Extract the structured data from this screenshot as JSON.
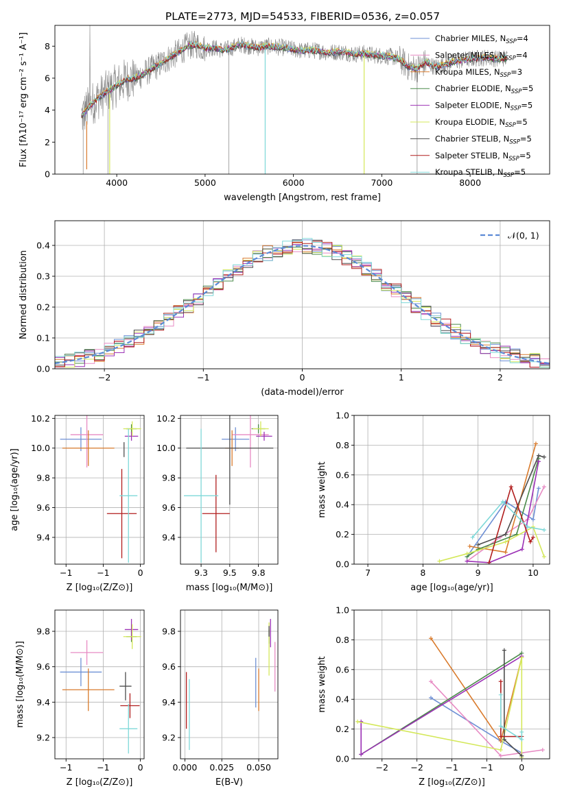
{
  "figure": {
    "title": "PLATE=2773, MJD=54533, FIBERID=0536, z=0.057"
  },
  "colors": {
    "Chabrier MILES": "#6d8fd4",
    "Salpeter MILES": "#e78ac3",
    "Kroupa MILES": "#d97a2b",
    "Chabrier ELODIE": "#4a8a4a",
    "Salpeter ELODIE": "#9b30b5",
    "Kroupa ELODIE": "#d4e85a",
    "Chabrier STELIB": "#4d4d4d",
    "Salpeter STELIB": "#b01c1c",
    "Kroupa STELIB": "#7dd8d8",
    "data": "#808080"
  },
  "chart_data": [
    {
      "id": "spectrum",
      "type": "line",
      "xlabel": "wavelength [Angstrom, rest frame]",
      "ylabel": "Flux [fλ10⁻¹⁷ erg cm⁻² s⁻¹ A⁻¹]",
      "xlim": [
        3300,
        8900
      ],
      "ylim": [
        0,
        9.3
      ],
      "xticks": [
        4000,
        5000,
        6000,
        7000,
        8000
      ],
      "yticks": [
        0,
        2,
        4,
        6,
        8
      ],
      "continuum": [
        [
          3600,
          3.6
        ],
        [
          3700,
          4.3
        ],
        [
          3800,
          4.8
        ],
        [
          3900,
          5.2
        ],
        [
          4000,
          5.55
        ],
        [
          4100,
          5.9
        ],
        [
          4200,
          6.0
        ],
        [
          4300,
          6.25
        ],
        [
          4400,
          6.6
        ],
        [
          4500,
          6.9
        ],
        [
          4600,
          7.3
        ],
        [
          4700,
          7.6
        ],
        [
          4800,
          8.0
        ],
        [
          4900,
          8.1
        ],
        [
          5000,
          7.85
        ],
        [
          5100,
          7.9
        ],
        [
          5200,
          7.75
        ],
        [
          5300,
          7.9
        ],
        [
          5400,
          8.1
        ],
        [
          5500,
          8.0
        ],
        [
          5600,
          7.9
        ],
        [
          5700,
          8.0
        ],
        [
          5800,
          7.95
        ],
        [
          5900,
          7.9
        ],
        [
          6000,
          7.8
        ],
        [
          6100,
          7.7
        ],
        [
          6200,
          7.75
        ],
        [
          6300,
          7.7
        ],
        [
          6400,
          7.6
        ],
        [
          6500,
          7.65
        ],
        [
          6600,
          7.6
        ],
        [
          6700,
          7.5
        ],
        [
          6800,
          7.55
        ],
        [
          6900,
          7.45
        ],
        [
          7000,
          7.4
        ],
        [
          7100,
          7.35
        ],
        [
          7200,
          7.2
        ],
        [
          7300,
          6.7
        ],
        [
          7400,
          6.6
        ],
        [
          7500,
          7.0
        ],
        [
          7600,
          6.7
        ],
        [
          7700,
          6.85
        ],
        [
          7800,
          7.0
        ],
        [
          7900,
          7.1
        ],
        [
          8000,
          7.2
        ],
        [
          8100,
          7.25
        ],
        [
          8200,
          7.3
        ],
        [
          8300,
          7.2
        ],
        [
          8400,
          7.25
        ]
      ],
      "legend": [
        "Chabrier MILES, N_SSP=4",
        "Salpeter MILES, N_SSP=4",
        "Kroupa MILES, N_SSP=3",
        "Chabrier ELODIE, N_SSP=5",
        "Salpeter ELODIE, N_SSP=5",
        "Kroupa ELODIE, N_SSP=5",
        "Chabrier STELIB, N_SSP=5",
        "Salpeter STELIB, N_SSP=5",
        "Kroupa STELIB, N_SSP=5"
      ]
    },
    {
      "id": "residuals",
      "type": "line",
      "xlabel": "(data-model)/error",
      "ylabel": "Normed distribution",
      "xlim": [
        -2.5,
        2.5
      ],
      "ylim": [
        0,
        0.48
      ],
      "xticks": [
        -2,
        -1,
        0,
        1,
        2
      ],
      "yticks": [
        0.0,
        0.1,
        0.2,
        0.3,
        0.4
      ],
      "legend": "𝒩(0, 1)",
      "bin_width": 0.1
    },
    {
      "id": "age-vs-Z",
      "type": "scatter",
      "xlabel": "Z [log₁₀(Z/Z⊙)]",
      "ylabel": "age  [log₁₀(age/yr)]",
      "xlim": [
        -1.15,
        0.05
      ],
      "ylim": [
        9.22,
        10.22
      ],
      "xticks": [
        -1.0,
        -0.5,
        0.0
      ],
      "yticks": [
        9.4,
        9.6,
        9.8,
        10.0,
        10.2
      ],
      "points": [
        {
          "model": "Chabrier MILES",
          "x": -0.8,
          "y": 10.06,
          "xerr": 0.28,
          "yerr": 0.08
        },
        {
          "model": "Salpeter MILES",
          "x": -0.72,
          "y": 10.09,
          "xerr": 0.22,
          "yerr": 0.22
        },
        {
          "model": "Kroupa MILES",
          "x": -0.7,
          "y": 10.0,
          "xerr": 0.35,
          "yerr": 0.12
        },
        {
          "model": "Chabrier ELODIE",
          "x": -0.12,
          "y": 10.13,
          "xerr": 0.07,
          "yerr": 0.03
        },
        {
          "model": "Salpeter ELODIE",
          "x": -0.12,
          "y": 10.08,
          "xerr": 0.09,
          "yerr": 0.03
        },
        {
          "model": "Kroupa ELODIE",
          "x": -0.11,
          "y": 10.13,
          "xerr": 0.12,
          "yerr": 0.05
        },
        {
          "model": "Chabrier STELIB",
          "x": -0.22,
          "y": 9.99,
          "xerr": 0.0,
          "yerr": 0.05
        },
        {
          "model": "Salpeter STELIB",
          "x": -0.25,
          "y": 9.56,
          "xerr": 0.2,
          "yerr": 0.3
        },
        {
          "model": "Kroupa STELIB",
          "x": -0.16,
          "y": 9.68,
          "xerr": 0.12,
          "yerr": 0.45
        }
      ]
    },
    {
      "id": "age-vs-mass",
      "type": "scatter",
      "xlabel": "mass [log₁₀(M/M⊙)]",
      "ylabel": "",
      "xlim": [
        9.07,
        9.92
      ],
      "ylim": [
        9.22,
        10.22
      ],
      "xticks": [
        9.25,
        9.5,
        9.75
      ],
      "yticks": [
        9.4,
        9.6,
        9.8,
        10.0,
        10.2
      ],
      "points": [
        {
          "model": "Chabrier MILES",
          "x": 9.55,
          "y": 10.06,
          "xerr": 0.12,
          "yerr": 0.08
        },
        {
          "model": "Salpeter MILES",
          "x": 9.68,
          "y": 10.09,
          "xerr": 0.16,
          "yerr": 0.22
        },
        {
          "model": "Kroupa MILES",
          "x": 9.52,
          "y": 10.0,
          "xerr": 0.06,
          "yerr": 0.12
        },
        {
          "model": "Chabrier ELODIE",
          "x": 9.75,
          "y": 10.13,
          "xerr": 0.06,
          "yerr": 0.03
        },
        {
          "model": "Salpeter ELODIE",
          "x": 9.8,
          "y": 10.08,
          "xerr": 0.07,
          "yerr": 0.03
        },
        {
          "model": "Kroupa ELODIE",
          "x": 9.77,
          "y": 10.13,
          "xerr": 0.07,
          "yerr": 0.05
        },
        {
          "model": "Chabrier STELIB",
          "x": 9.5,
          "y": 10.0,
          "xerr": 0.38,
          "yerr": 0.38
        },
        {
          "model": "Salpeter STELIB",
          "x": 9.38,
          "y": 9.56,
          "xerr": 0.12,
          "yerr": 0.26
        },
        {
          "model": "Kroupa STELIB",
          "x": 9.25,
          "y": 9.68,
          "xerr": 0.15,
          "yerr": 0.45
        }
      ]
    },
    {
      "id": "massweight-vs-age",
      "type": "line",
      "xlabel": "age  [log₁₀(age/yr)]",
      "ylabel": "mass weight",
      "xlim": [
        6.75,
        10.3
      ],
      "ylim": [
        0,
        1.0
      ],
      "xticks": [
        7,
        8,
        9,
        10
      ],
      "yticks": [
        0.0,
        0.2,
        0.4,
        0.6,
        0.8,
        1.0
      ],
      "series": [
        {
          "model": "Chabrier MILES",
          "x": [
            8.8,
            9.5,
            10.0,
            10.1
          ],
          "y": [
            0.05,
            0.42,
            0.3,
            0.51
          ]
        },
        {
          "model": "Salpeter MILES",
          "x": [
            8.8,
            9.4,
            9.9,
            10.2
          ],
          "y": [
            0.02,
            0.18,
            0.3,
            0.52
          ]
        },
        {
          "model": "Kroupa MILES",
          "x": [
            8.85,
            9.5,
            10.05
          ],
          "y": [
            0.12,
            0.08,
            0.81
          ]
        },
        {
          "model": "Chabrier ELODIE",
          "x": [
            8.8,
            9.0,
            9.7,
            10.1
          ],
          "y": [
            0.05,
            0.1,
            0.2,
            0.71
          ]
        },
        {
          "model": "Salpeter ELODIE",
          "x": [
            8.8,
            9.2,
            9.8,
            10.1
          ],
          "y": [
            0.02,
            0.01,
            0.1,
            0.69
          ]
        },
        {
          "model": "Kroupa ELODIE",
          "x": [
            8.3,
            8.8,
            9.5,
            10.0,
            10.2
          ],
          "y": [
            0.02,
            0.07,
            0.15,
            0.25,
            0.05
          ]
        },
        {
          "model": "Chabrier STELIB",
          "x": [
            9.0,
            9.5,
            10.1,
            10.2
          ],
          "y": [
            0.13,
            0.2,
            0.73,
            0.72
          ]
        },
        {
          "model": "Salpeter STELIB",
          "x": [
            9.2,
            9.6,
            9.95,
            10.0
          ],
          "y": [
            0.01,
            0.52,
            0.15,
            0.18
          ]
        },
        {
          "model": "Kroupa STELIB",
          "x": [
            8.9,
            9.45,
            9.9,
            10.2
          ],
          "y": [
            0.18,
            0.42,
            0.25,
            0.23
          ]
        }
      ]
    },
    {
      "id": "mass-vs-Z",
      "type": "scatter",
      "xlabel": "Z [log₁₀(Z/Z⊙)]",
      "ylabel": "mass [log₁₀(M/M⊙)]",
      "xlim": [
        -1.15,
        0.05
      ],
      "ylim": [
        9.08,
        9.92
      ],
      "xticks": [
        -1.0,
        -0.5,
        0.0
      ],
      "yticks": [
        9.2,
        9.4,
        9.6,
        9.8
      ],
      "points": [
        {
          "model": "Chabrier MILES",
          "x": -0.8,
          "y": 9.57,
          "xerr": 0.28,
          "yerr": 0.08
        },
        {
          "model": "Salpeter MILES",
          "x": -0.72,
          "y": 9.68,
          "xerr": 0.22,
          "yerr": 0.07
        },
        {
          "model": "Kroupa MILES",
          "x": -0.7,
          "y": 9.47,
          "xerr": 0.35,
          "yerr": 0.12
        },
        {
          "model": "Chabrier ELODIE",
          "x": -0.12,
          "y": 9.77,
          "xerr": 0.07,
          "yerr": 0.03
        },
        {
          "model": "Salpeter ELODIE",
          "x": -0.12,
          "y": 9.81,
          "xerr": 0.09,
          "yerr": 0.06
        },
        {
          "model": "Kroupa ELODIE",
          "x": -0.11,
          "y": 9.77,
          "xerr": 0.12,
          "yerr": 0.07
        },
        {
          "model": "Chabrier STELIB",
          "x": -0.2,
          "y": 9.49,
          "xerr": 0.08,
          "yerr": 0.08
        },
        {
          "model": "Salpeter STELIB",
          "x": -0.14,
          "y": 9.38,
          "xerr": 0.13,
          "yerr": 0.07
        },
        {
          "model": "Kroupa STELIB",
          "x": -0.16,
          "y": 9.25,
          "xerr": 0.12,
          "yerr": 0.14
        }
      ]
    },
    {
      "id": "mass-vs-EBV",
      "type": "scatter",
      "xlabel": "E(B-V)",
      "ylabel": "",
      "xlim": [
        -0.003,
        0.063
      ],
      "ylim": [
        9.08,
        9.92
      ],
      "xticks": [
        0.0,
        0.025,
        0.05
      ],
      "yticks": [
        9.2,
        9.4,
        9.6,
        9.8
      ],
      "points": [
        {
          "model": "Chabrier MILES",
          "x": 0.048,
          "y": 9.51,
          "xerr": 0.0,
          "yerr": 0.14
        },
        {
          "model": "Salpeter MILES",
          "x": 0.061,
          "y": 9.6,
          "xerr": 0.0,
          "yerr": 0.14
        },
        {
          "model": "Kroupa MILES",
          "x": 0.05,
          "y": 9.47,
          "xerr": 0.0,
          "yerr": 0.12
        },
        {
          "model": "Chabrier ELODIE",
          "x": 0.057,
          "y": 9.77,
          "xerr": 0.0,
          "yerr": 0.04
        },
        {
          "model": "Salpeter ELODIE",
          "x": 0.058,
          "y": 9.79,
          "xerr": 0.0,
          "yerr": 0.08
        },
        {
          "model": "Kroupa ELODIE",
          "x": 0.057,
          "y": 9.7,
          "xerr": 0.0,
          "yerr": 0.15
        },
        {
          "model": "Chabrier STELIB",
          "x": 0.057,
          "y": 9.8,
          "xerr": 0.0,
          "yerr": 0.03
        },
        {
          "model": "Salpeter STELIB",
          "x": 0.001,
          "y": 9.41,
          "xerr": 0.0,
          "yerr": 0.16
        },
        {
          "model": "Kroupa STELIB",
          "x": 0.003,
          "y": 9.33,
          "xerr": 0.0,
          "yerr": 0.2
        }
      ]
    },
    {
      "id": "massweight-vs-Z",
      "type": "line",
      "xlabel": "Z [log₁₀(Z/Z⊙)]",
      "ylabel": "mass weight",
      "xlim": [
        -2.4,
        0.4
      ],
      "ylim": [
        0,
        1.0
      ],
      "xticks": [
        -2.0,
        -1.5,
        -1.0,
        -0.5,
        0.0
      ],
      "yticks": [
        0.0,
        0.2,
        0.4,
        0.6,
        0.8,
        1.0
      ],
      "series": [
        {
          "model": "Chabrier MILES",
          "x": [
            -1.3,
            -0.3,
            0.0
          ],
          "y": [
            0.41,
            0.12,
            0.04
          ]
        },
        {
          "model": "Salpeter MILES",
          "x": [
            -1.3,
            -0.3,
            0.3
          ],
          "y": [
            0.52,
            0.02,
            0.06
          ]
        },
        {
          "model": "Kroupa MILES",
          "x": [
            -1.3,
            -0.3,
            0.0
          ],
          "y": [
            0.81,
            0.12,
            0.68
          ]
        },
        {
          "model": "Chabrier ELODIE",
          "x": [
            -2.3,
            0.0
          ],
          "y": [
            0.03,
            0.71
          ]
        },
        {
          "model": "Salpeter ELODIE",
          "x": [
            -2.3,
            -2.3,
            0.0
          ],
          "y": [
            0.25,
            0.03,
            0.69
          ]
        },
        {
          "model": "Kroupa ELODIE",
          "x": [
            -2.35,
            -0.3,
            0.0,
            0.0
          ],
          "y": [
            0.25,
            0.06,
            0.68,
            0.01
          ]
        },
        {
          "model": "Chabrier STELIB",
          "x": [
            -0.25,
            -0.25,
            0.0
          ],
          "y": [
            0.73,
            0.13,
            0.02
          ]
        },
        {
          "model": "Salpeter STELIB",
          "x": [
            -0.3,
            -0.3,
            0.0
          ],
          "y": [
            0.52,
            0.15,
            0.15
          ]
        },
        {
          "model": "Kroupa STELIB",
          "x": [
            -0.3,
            -0.3,
            0.0,
            0.0
          ],
          "y": [
            0.43,
            0.22,
            0.13,
            0.18
          ]
        }
      ]
    }
  ]
}
